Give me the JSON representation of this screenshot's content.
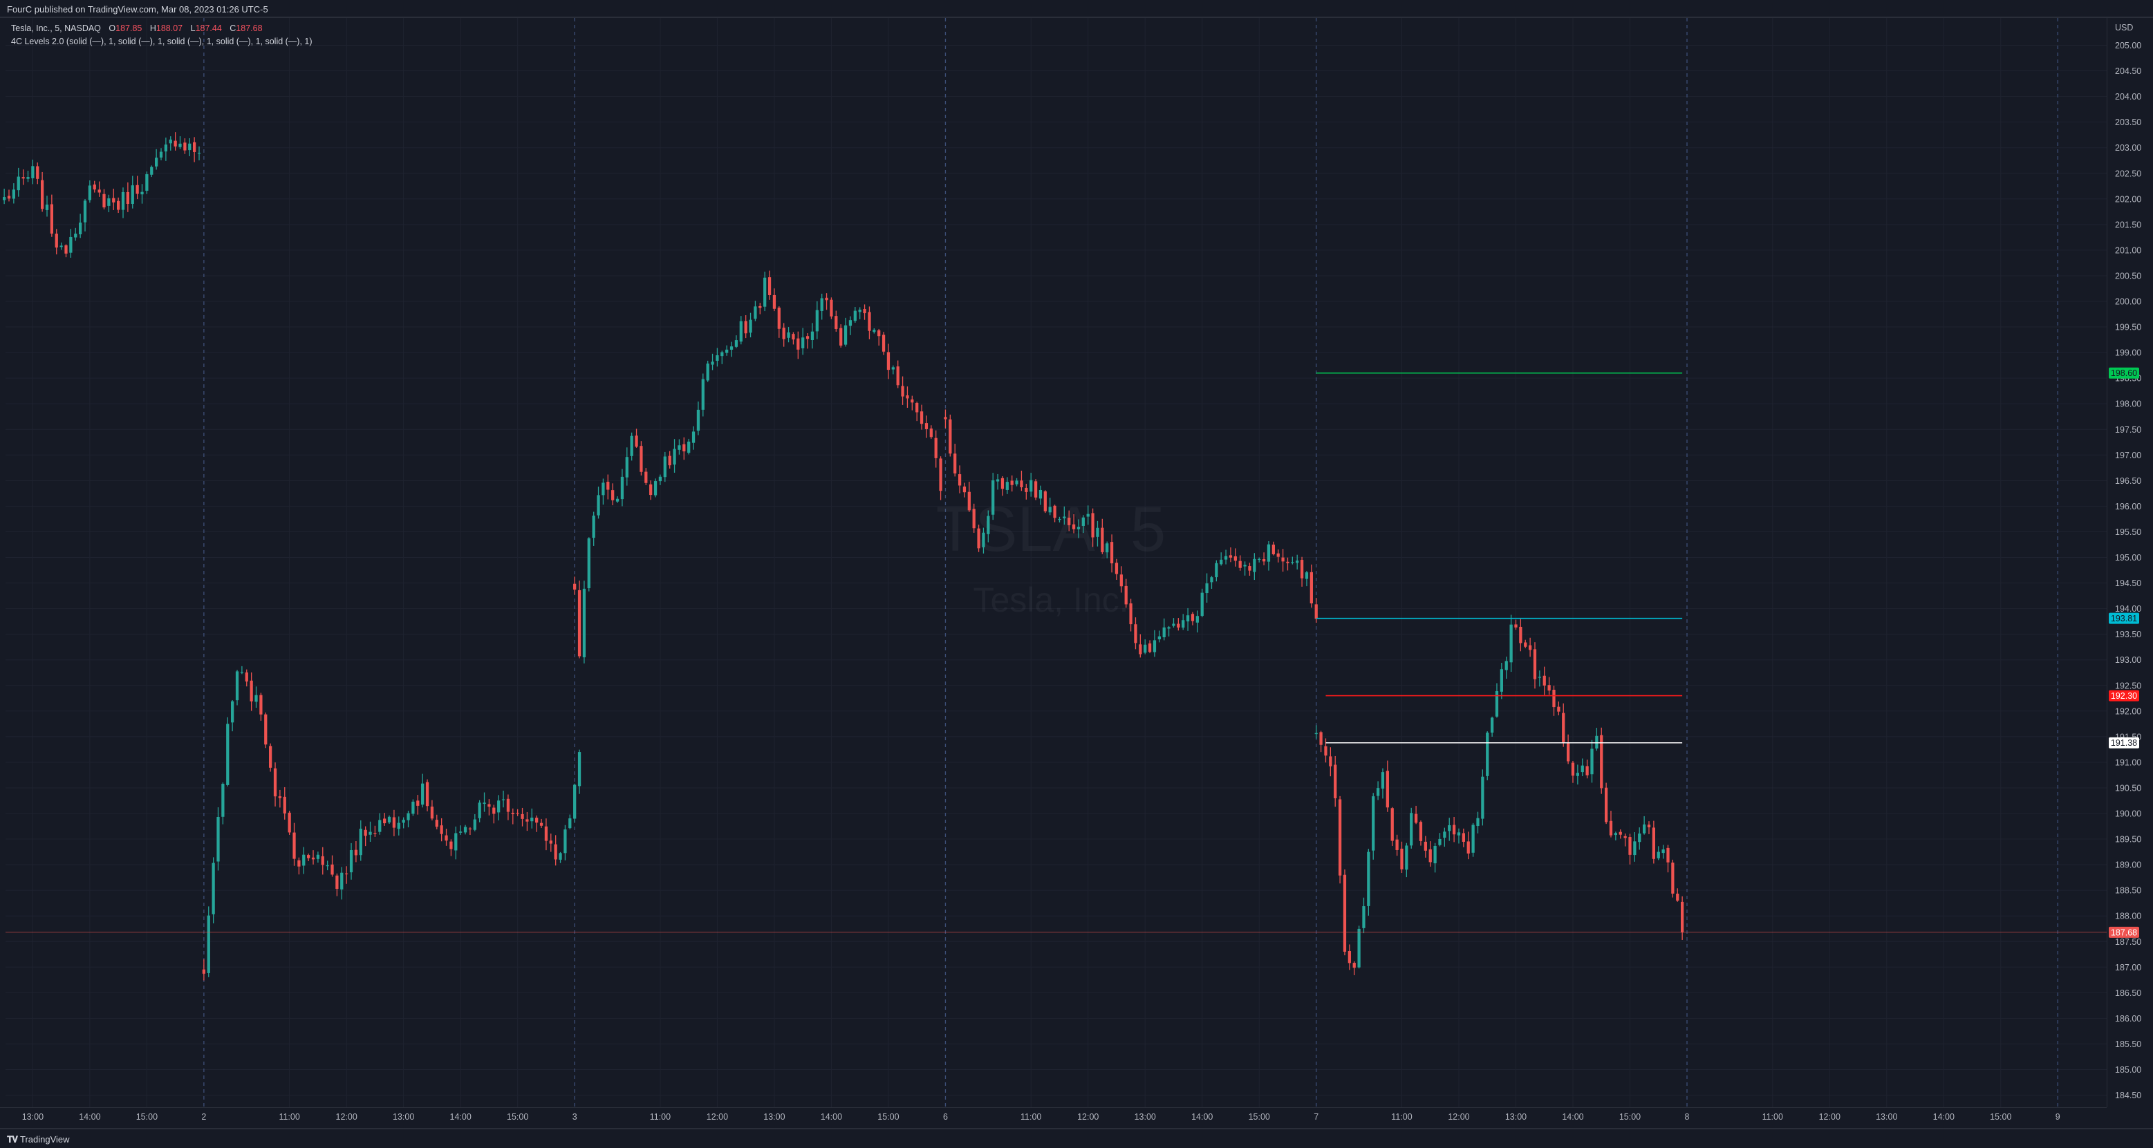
{
  "header": {
    "published": "FourC published on TradingView.com, Mar 08, 2023 01:26 UTC-5"
  },
  "footer": {
    "logo_text": "TradingView"
  },
  "legend": {
    "symbol": "Tesla, Inc., 5, NASDAQ",
    "ohlc": [
      {
        "label": "O",
        "value": "187.85"
      },
      {
        "label": "H",
        "value": "188.07"
      },
      {
        "label": "L",
        "value": "187.44"
      },
      {
        "label": "C",
        "value": "187.68"
      }
    ],
    "indicator": "4C Levels 2.0 (solid (—), 1, solid (—), 1, solid (—), 1, solid (—), 1, solid (—), 1)"
  },
  "watermark": {
    "symbol": "TSLA, 5",
    "name": "Tesla, Inc."
  },
  "colors": {
    "up": "#26a69a",
    "down": "#ef5350",
    "background": "#161a25",
    "grid": "#1f2330",
    "text": "#b2b5be"
  },
  "chart_data": {
    "type": "candlestick",
    "currency": "USD",
    "y_axis": {
      "range": [
        184.3,
        205.5
      ],
      "ticks": [
        "184.50",
        "185.00",
        "185.50",
        "186.00",
        "186.50",
        "187.00",
        "187.50",
        "188.00",
        "188.50",
        "189.00",
        "189.50",
        "190.00",
        "190.50",
        "191.00",
        "191.50",
        "192.00",
        "192.50",
        "193.00",
        "193.50",
        "194.00",
        "194.50",
        "195.00",
        "195.50",
        "196.00",
        "196.50",
        "197.00",
        "197.50",
        "198.00",
        "198.50",
        "199.00",
        "199.50",
        "200.00",
        "200.50",
        "201.00",
        "201.50",
        "202.00",
        "202.50",
        "203.00",
        "203.50",
        "204.00",
        "204.50",
        "205.00"
      ]
    },
    "x_axis": {
      "ticks": [
        {
          "label": "13:00",
          "t": 6
        },
        {
          "label": "14:00",
          "t": 18
        },
        {
          "label": "15:00",
          "t": 30
        },
        {
          "label": "2",
          "t": 42,
          "separator": true
        },
        {
          "label": "11:00",
          "t": 60
        },
        {
          "label": "12:00",
          "t": 72
        },
        {
          "label": "13:00",
          "t": 84
        },
        {
          "label": "14:00",
          "t": 96
        },
        {
          "label": "15:00",
          "t": 108
        },
        {
          "label": "3",
          "t": 120,
          "separator": true
        },
        {
          "label": "11:00",
          "t": 138
        },
        {
          "label": "12:00",
          "t": 150
        },
        {
          "label": "13:00",
          "t": 162
        },
        {
          "label": "14:00",
          "t": 174
        },
        {
          "label": "15:00",
          "t": 186
        },
        {
          "label": "6",
          "t": 198,
          "separator": true
        },
        {
          "label": "11:00",
          "t": 216
        },
        {
          "label": "12:00",
          "t": 228
        },
        {
          "label": "13:00",
          "t": 240
        },
        {
          "label": "14:00",
          "t": 252
        },
        {
          "label": "15:00",
          "t": 264
        },
        {
          "label": "7",
          "t": 276,
          "separator": true
        },
        {
          "label": "11:00",
          "t": 294
        },
        {
          "label": "12:00",
          "t": 306
        },
        {
          "label": "13:00",
          "t": 318
        },
        {
          "label": "14:00",
          "t": 330
        },
        {
          "label": "15:00",
          "t": 342
        },
        {
          "label": "8",
          "t": 354,
          "separator": true
        },
        {
          "label": "11:00",
          "t": 372
        },
        {
          "label": "12:00",
          "t": 384
        },
        {
          "label": "13:00",
          "t": 396
        },
        {
          "label": "14:00",
          "t": 408
        },
        {
          "label": "15:00",
          "t": 420
        },
        {
          "label": "9",
          "t": 432,
          "separator": true
        }
      ]
    },
    "sessions": [
      {
        "start": 0,
        "anchors": [
          [
            0,
            202.0
          ],
          [
            6,
            202.5
          ],
          [
            12,
            200.9
          ],
          [
            18,
            202.1
          ],
          [
            24,
            201.9
          ],
          [
            30,
            202.4
          ],
          [
            36,
            203.2
          ],
          [
            41,
            202.9
          ]
        ]
      },
      {
        "start": 42,
        "anchors": [
          [
            0,
            187.0
          ],
          [
            3,
            189.9
          ],
          [
            5,
            191.6
          ],
          [
            7,
            192.8
          ],
          [
            12,
            192.0
          ],
          [
            15,
            190.5
          ],
          [
            20,
            189.0
          ],
          [
            24,
            189.3
          ],
          [
            28,
            188.6
          ],
          [
            34,
            189.7
          ],
          [
            40,
            189.9
          ],
          [
            46,
            190.4
          ],
          [
            52,
            189.3
          ],
          [
            58,
            190.1
          ],
          [
            64,
            190.2
          ],
          [
            70,
            189.8
          ],
          [
            74,
            189.1
          ],
          [
            77,
            189.9
          ],
          [
            79,
            191.2
          ]
        ]
      },
      {
        "start": 120,
        "anchors": [
          [
            0,
            194.5
          ],
          [
            1,
            193.2
          ],
          [
            3,
            195.5
          ],
          [
            6,
            196.3
          ],
          [
            9,
            196.1
          ],
          [
            12,
            197.3
          ],
          [
            16,
            196.4
          ],
          [
            19,
            196.8
          ],
          [
            24,
            197.2
          ],
          [
            28,
            198.7
          ],
          [
            34,
            199.3
          ],
          [
            38,
            199.8
          ],
          [
            40,
            200.3
          ],
          [
            43,
            199.5
          ],
          [
            47,
            199.2
          ],
          [
            50,
            199.5
          ],
          [
            53,
            200.1
          ],
          [
            56,
            199.3
          ],
          [
            60,
            199.9
          ],
          [
            64,
            199.3
          ],
          [
            68,
            198.4
          ],
          [
            72,
            197.9
          ],
          [
            75,
            197.4
          ],
          [
            77,
            196.3
          ]
        ]
      },
      {
        "start": 198,
        "anchors": [
          [
            0,
            197.7
          ],
          [
            2,
            196.6
          ],
          [
            5,
            196.0
          ],
          [
            7,
            195.2
          ],
          [
            10,
            196.4
          ],
          [
            14,
            196.6
          ],
          [
            18,
            196.4
          ],
          [
            22,
            195.9
          ],
          [
            26,
            195.6
          ],
          [
            30,
            195.7
          ],
          [
            34,
            195.1
          ],
          [
            38,
            194.1
          ],
          [
            40,
            193.2
          ],
          [
            44,
            193.3
          ],
          [
            48,
            193.8
          ],
          [
            52,
            193.8
          ],
          [
            56,
            194.6
          ],
          [
            60,
            195.0
          ],
          [
            64,
            194.8
          ],
          [
            68,
            195.1
          ],
          [
            72,
            194.9
          ],
          [
            76,
            194.6
          ],
          [
            78,
            193.8
          ]
        ]
      },
      {
        "start": 276,
        "anchors": [
          [
            0,
            191.6
          ],
          [
            2,
            191.2
          ],
          [
            4,
            190.3
          ],
          [
            6,
            187.3
          ],
          [
            8,
            186.9
          ],
          [
            10,
            188.3
          ],
          [
            12,
            190.5
          ],
          [
            14,
            190.8
          ],
          [
            16,
            189.6
          ],
          [
            18,
            189.1
          ],
          [
            20,
            189.9
          ],
          [
            24,
            189.2
          ],
          [
            28,
            189.8
          ],
          [
            32,
            189.3
          ],
          [
            34,
            190.0
          ],
          [
            36,
            191.5
          ],
          [
            38,
            192.3
          ],
          [
            41,
            193.6
          ],
          [
            44,
            193.3
          ],
          [
            47,
            192.5
          ],
          [
            50,
            192.2
          ],
          [
            53,
            191.0
          ],
          [
            55,
            190.7
          ],
          [
            57,
            190.9
          ],
          [
            59,
            191.4
          ],
          [
            61,
            189.9
          ],
          [
            63,
            189.6
          ],
          [
            66,
            189.3
          ],
          [
            69,
            189.8
          ],
          [
            71,
            189.3
          ],
          [
            73,
            189.2
          ],
          [
            76,
            188.2
          ],
          [
            77,
            187.68
          ]
        ]
      }
    ],
    "levels": [
      {
        "price": 198.6,
        "color": "#00c853",
        "label": "198.60",
        "t_start": 276,
        "t_end": 353
      },
      {
        "price": 193.81,
        "color": "#00bcd4",
        "label": "193.81",
        "t_start": 276,
        "t_end": 353
      },
      {
        "price": 192.3,
        "color": "#ff1a1a",
        "label": "192.30",
        "t_start": 278,
        "t_end": 353
      },
      {
        "price": 191.38,
        "color": "#ffffff",
        "label": "191.38",
        "t_start": 278,
        "t_end": 353
      }
    ],
    "last_price": {
      "value": 187.68,
      "label": "187.68",
      "color": "#ef5350"
    }
  }
}
